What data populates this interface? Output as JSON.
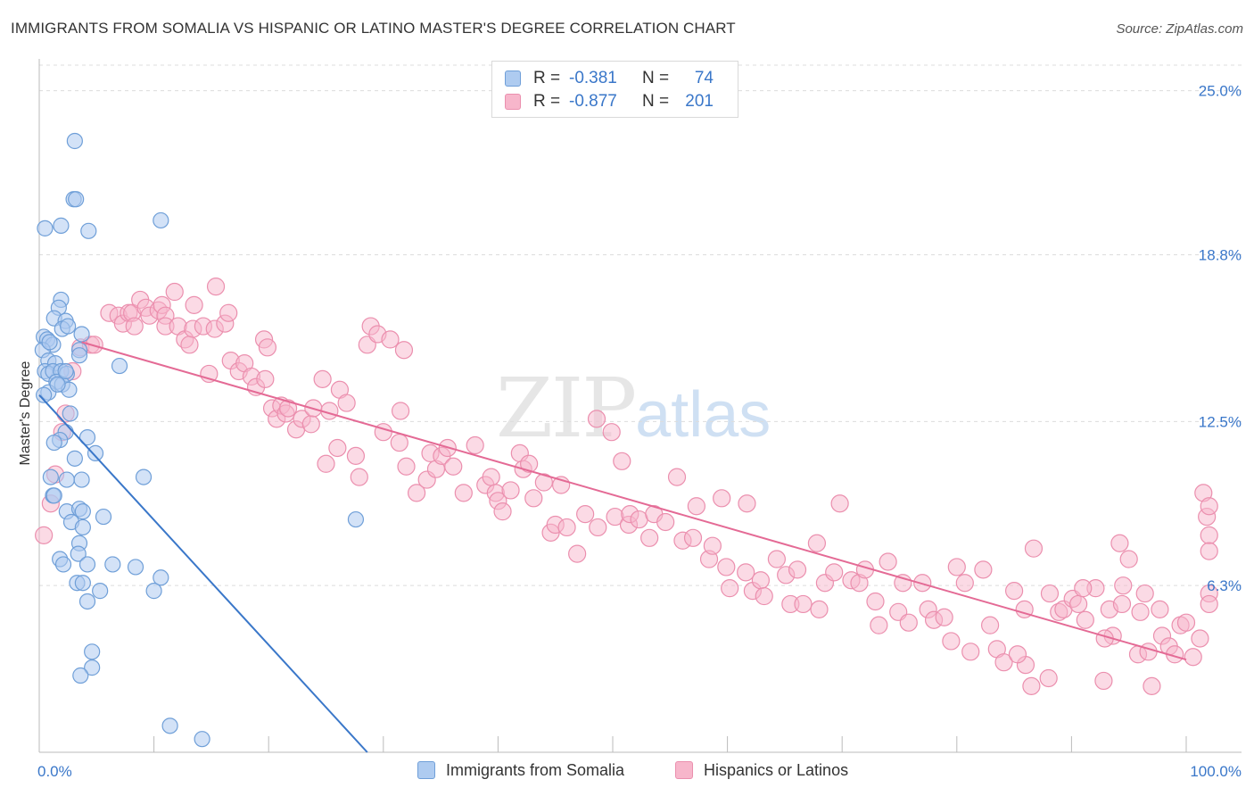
{
  "header": {
    "title": "IMMIGRANTS FROM SOMALIA VS HISPANIC OR LATINO MASTER'S DEGREE CORRELATION CHART",
    "source": "Source: ZipAtlas.com"
  },
  "watermark": {
    "zip": "ZIP",
    "atlas": "atlas"
  },
  "legend": {
    "rows": [
      {
        "r_label": "R =",
        "r_value": "-0.381",
        "n_label": "N =",
        "n_value": "74"
      },
      {
        "r_label": "R =",
        "r_value": "-0.877",
        "n_label": "N =",
        "n_value": "201"
      }
    ]
  },
  "colors": {
    "series1_fill": "#aecbf0",
    "series1_stroke": "#6f9fd8",
    "series1_line": "#3a77c9",
    "series2_fill": "#f7b6cb",
    "series2_stroke": "#eb8fae",
    "series2_line": "#e46a95",
    "axis_text": "#3a77c9",
    "grid": "#dcdcdc"
  },
  "chart_data": {
    "type": "scatter",
    "title": "IMMIGRANTS FROM SOMALIA VS HISPANIC OR LATINO MASTER'S DEGREE CORRELATION CHART",
    "xlabel": "",
    "ylabel": "Master's Degree",
    "xlim": [
      0,
      100
    ],
    "ylim": [
      0,
      26
    ],
    "x_tick_labels": [
      "0.0%",
      "100.0%"
    ],
    "y_ticks": [
      6.3,
      12.5,
      18.8,
      25.0
    ],
    "y_tick_labels": [
      "6.3%",
      "12.5%",
      "18.8%",
      "25.0%"
    ],
    "grid": true,
    "legend_position": "bottom-center",
    "series": [
      {
        "name": "Immigrants from Somalia",
        "trend": {
          "x": [
            0,
            28.6
          ],
          "y": [
            13.5,
            0
          ]
        },
        "points": [
          [
            3.1,
            23.1
          ],
          [
            3.0,
            20.9
          ],
          [
            3.2,
            20.9
          ],
          [
            0.5,
            19.8
          ],
          [
            1.9,
            19.9
          ],
          [
            4.3,
            19.7
          ],
          [
            10.6,
            20.1
          ],
          [
            1.9,
            17.1
          ],
          [
            1.7,
            16.8
          ],
          [
            1.3,
            16.4
          ],
          [
            2.3,
            16.3
          ],
          [
            2.0,
            16.0
          ],
          [
            2.5,
            16.1
          ],
          [
            3.7,
            15.8
          ],
          [
            0.4,
            15.7
          ],
          [
            0.7,
            15.6
          ],
          [
            1.2,
            15.4
          ],
          [
            0.3,
            15.2
          ],
          [
            3.5,
            15.2
          ],
          [
            3.5,
            15.0
          ],
          [
            0.8,
            14.8
          ],
          [
            1.4,
            14.7
          ],
          [
            7.0,
            14.6
          ],
          [
            0.5,
            14.4
          ],
          [
            0.8,
            14.3
          ],
          [
            1.2,
            14.4
          ],
          [
            1.9,
            14.4
          ],
          [
            2.4,
            14.3
          ],
          [
            1.5,
            14.0
          ],
          [
            2.0,
            13.9
          ],
          [
            2.6,
            13.7
          ],
          [
            0.8,
            13.6
          ],
          [
            0.4,
            13.5
          ],
          [
            2.3,
            12.1
          ],
          [
            1.8,
            11.8
          ],
          [
            1.3,
            11.7
          ],
          [
            4.2,
            11.9
          ],
          [
            4.9,
            11.3
          ],
          [
            3.1,
            11.1
          ],
          [
            1.0,
            10.4
          ],
          [
            2.4,
            10.3
          ],
          [
            3.7,
            10.3
          ],
          [
            9.1,
            10.4
          ],
          [
            1.2,
            9.7
          ],
          [
            1.3,
            9.7
          ],
          [
            2.4,
            9.1
          ],
          [
            3.5,
            9.2
          ],
          [
            3.8,
            9.1
          ],
          [
            5.6,
            8.9
          ],
          [
            2.8,
            8.7
          ],
          [
            3.8,
            8.5
          ],
          [
            27.6,
            8.8
          ],
          [
            3.5,
            7.9
          ],
          [
            3.4,
            7.5
          ],
          [
            1.8,
            7.3
          ],
          [
            2.1,
            7.1
          ],
          [
            4.2,
            7.1
          ],
          [
            6.4,
            7.1
          ],
          [
            8.4,
            7.0
          ],
          [
            10.6,
            6.6
          ],
          [
            3.3,
            6.4
          ],
          [
            3.8,
            6.4
          ],
          [
            5.3,
            6.1
          ],
          [
            10.0,
            6.1
          ],
          [
            4.2,
            5.7
          ],
          [
            4.6,
            3.8
          ],
          [
            4.6,
            3.2
          ],
          [
            3.6,
            2.9
          ],
          [
            11.4,
            1.0
          ],
          [
            14.2,
            0.5
          ],
          [
            2.3,
            14.4
          ],
          [
            0.9,
            15.5
          ],
          [
            1.6,
            13.9
          ],
          [
            2.7,
            12.8
          ]
        ]
      },
      {
        "name": "Hispanics or Latinos",
        "trend": {
          "x": [
            3.7,
            100
          ],
          "y": [
            15.5,
            3.5
          ]
        },
        "points": [
          [
            0.4,
            8.2
          ],
          [
            1.0,
            9.4
          ],
          [
            1.4,
            10.5
          ],
          [
            2.0,
            12.1
          ],
          [
            2.3,
            12.8
          ],
          [
            2.9,
            14.4
          ],
          [
            3.6,
            15.3
          ],
          [
            4.5,
            15.4
          ],
          [
            4.8,
            15.4
          ],
          [
            6.1,
            16.6
          ],
          [
            6.9,
            16.5
          ],
          [
            7.3,
            16.2
          ],
          [
            7.8,
            16.6
          ],
          [
            8.1,
            16.6
          ],
          [
            8.3,
            16.1
          ],
          [
            8.8,
            17.1
          ],
          [
            9.3,
            16.8
          ],
          [
            9.6,
            16.5
          ],
          [
            10.4,
            16.7
          ],
          [
            10.7,
            16.9
          ],
          [
            11.0,
            16.5
          ],
          [
            11.0,
            16.1
          ],
          [
            11.8,
            17.4
          ],
          [
            12.1,
            16.1
          ],
          [
            12.7,
            15.6
          ],
          [
            13.1,
            15.4
          ],
          [
            13.4,
            16.0
          ],
          [
            13.5,
            16.9
          ],
          [
            14.3,
            16.1
          ],
          [
            15.3,
            16.0
          ],
          [
            15.4,
            17.6
          ],
          [
            16.2,
            16.2
          ],
          [
            16.5,
            16.6
          ],
          [
            14.8,
            14.3
          ],
          [
            16.7,
            14.8
          ],
          [
            17.4,
            14.4
          ],
          [
            17.9,
            14.7
          ],
          [
            18.5,
            14.2
          ],
          [
            18.9,
            13.8
          ],
          [
            19.6,
            15.6
          ],
          [
            19.9,
            15.3
          ],
          [
            19.7,
            14.1
          ],
          [
            20.3,
            13.0
          ],
          [
            20.7,
            12.6
          ],
          [
            21.1,
            13.1
          ],
          [
            21.5,
            12.8
          ],
          [
            21.7,
            13.0
          ],
          [
            22.4,
            12.2
          ],
          [
            22.9,
            12.6
          ],
          [
            23.7,
            12.4
          ],
          [
            23.9,
            13.0
          ],
          [
            24.7,
            14.1
          ],
          [
            25.0,
            10.9
          ],
          [
            25.3,
            12.9
          ],
          [
            26.0,
            11.5
          ],
          [
            26.2,
            13.7
          ],
          [
            26.8,
            13.2
          ],
          [
            27.6,
            11.2
          ],
          [
            27.9,
            10.4
          ],
          [
            28.9,
            16.1
          ],
          [
            28.6,
            15.4
          ],
          [
            29.5,
            15.8
          ],
          [
            30.0,
            12.1
          ],
          [
            30.6,
            15.6
          ],
          [
            31.4,
            11.7
          ],
          [
            31.8,
            15.2
          ],
          [
            31.5,
            12.9
          ],
          [
            32.0,
            10.8
          ],
          [
            32.9,
            9.8
          ],
          [
            33.8,
            10.3
          ],
          [
            34.1,
            11.3
          ],
          [
            34.6,
            10.7
          ],
          [
            35.1,
            11.2
          ],
          [
            35.6,
            11.5
          ],
          [
            36.1,
            10.8
          ],
          [
            37.0,
            9.8
          ],
          [
            38.0,
            11.6
          ],
          [
            38.9,
            10.1
          ],
          [
            39.4,
            10.4
          ],
          [
            39.8,
            9.8
          ],
          [
            40.0,
            9.5
          ],
          [
            40.4,
            9.1
          ],
          [
            41.1,
            9.9
          ],
          [
            41.9,
            11.3
          ],
          [
            42.2,
            10.7
          ],
          [
            42.7,
            10.9
          ],
          [
            43.1,
            9.6
          ],
          [
            44.0,
            10.2
          ],
          [
            44.6,
            8.3
          ],
          [
            45.5,
            10.1
          ],
          [
            45.0,
            8.6
          ],
          [
            46.0,
            8.5
          ],
          [
            46.9,
            7.5
          ],
          [
            47.6,
            9.0
          ],
          [
            48.6,
            12.6
          ],
          [
            48.7,
            8.5
          ],
          [
            49.9,
            12.1
          ],
          [
            50.2,
            8.9
          ],
          [
            50.8,
            11.0
          ],
          [
            51.4,
            8.6
          ],
          [
            51.5,
            9.0
          ],
          [
            52.3,
            8.8
          ],
          [
            53.2,
            8.1
          ],
          [
            53.6,
            9.0
          ],
          [
            54.6,
            8.7
          ],
          [
            55.6,
            10.4
          ],
          [
            56.1,
            8.0
          ],
          [
            57.3,
            9.3
          ],
          [
            57.0,
            8.1
          ],
          [
            58.4,
            7.3
          ],
          [
            58.7,
            7.8
          ],
          [
            59.5,
            9.6
          ],
          [
            59.9,
            7.0
          ],
          [
            60.2,
            6.2
          ],
          [
            61.7,
            9.4
          ],
          [
            61.6,
            6.8
          ],
          [
            62.2,
            6.1
          ],
          [
            62.9,
            6.5
          ],
          [
            63.2,
            5.9
          ],
          [
            64.3,
            7.3
          ],
          [
            65.1,
            6.7
          ],
          [
            65.5,
            5.6
          ],
          [
            66.1,
            6.9
          ],
          [
            66.6,
            5.6
          ],
          [
            67.8,
            7.9
          ],
          [
            68.0,
            5.4
          ],
          [
            68.5,
            6.4
          ],
          [
            69.3,
            6.8
          ],
          [
            69.8,
            9.4
          ],
          [
            70.8,
            6.5
          ],
          [
            71.5,
            6.4
          ],
          [
            72.0,
            6.9
          ],
          [
            72.9,
            5.7
          ],
          [
            73.2,
            4.8
          ],
          [
            74.0,
            7.2
          ],
          [
            74.9,
            5.3
          ],
          [
            75.3,
            6.4
          ],
          [
            75.8,
            4.9
          ],
          [
            77.0,
            6.4
          ],
          [
            77.5,
            5.4
          ],
          [
            78.0,
            5.0
          ],
          [
            78.9,
            5.1
          ],
          [
            79.5,
            4.2
          ],
          [
            80.0,
            7.0
          ],
          [
            80.7,
            6.4
          ],
          [
            81.2,
            3.8
          ],
          [
            82.3,
            6.9
          ],
          [
            82.9,
            4.8
          ],
          [
            83.5,
            3.9
          ],
          [
            84.1,
            3.4
          ],
          [
            85.0,
            6.1
          ],
          [
            85.9,
            5.4
          ],
          [
            86.7,
            7.7
          ],
          [
            86.5,
            2.5
          ],
          [
            88.1,
            6.0
          ],
          [
            88.9,
            5.3
          ],
          [
            89.3,
            5.4
          ],
          [
            90.1,
            5.8
          ],
          [
            91.2,
            5.0
          ],
          [
            92.1,
            6.2
          ],
          [
            92.8,
            2.7
          ],
          [
            93.6,
            4.4
          ],
          [
            93.3,
            5.4
          ],
          [
            94.2,
            7.9
          ],
          [
            94.5,
            6.3
          ],
          [
            95.8,
            3.7
          ],
          [
            96.0,
            5.3
          ],
          [
            96.4,
            6.0
          ],
          [
            97.7,
            5.4
          ],
          [
            97.9,
            4.4
          ],
          [
            98.5,
            4.0
          ],
          [
            99.0,
            3.7
          ],
          [
            99.5,
            4.8
          ],
          [
            100.0,
            4.9
          ],
          [
            100.6,
            3.6
          ],
          [
            101.2,
            4.3
          ],
          [
            101.5,
            9.8
          ],
          [
            101.8,
            8.9
          ],
          [
            102.4,
            9.3
          ],
          [
            103.0,
            8.2
          ],
          [
            103.4,
            7.6
          ],
          [
            103.9,
            6.0
          ],
          [
            104.2,
            5.6
          ],
          [
            97.0,
            2.5
          ],
          [
            92.9,
            4.3
          ],
          [
            90.6,
            5.6
          ],
          [
            91.0,
            6.2
          ],
          [
            95.0,
            7.3
          ],
          [
            94.4,
            5.6
          ],
          [
            96.7,
            3.8
          ],
          [
            88.0,
            2.8
          ],
          [
            86.0,
            3.3
          ],
          [
            85.3,
            3.7
          ]
        ]
      }
    ]
  }
}
